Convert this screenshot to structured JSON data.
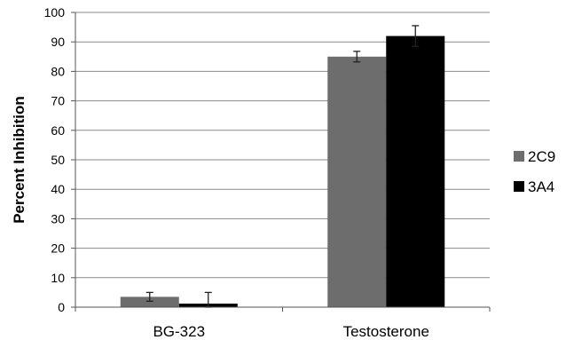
{
  "chart_data": {
    "type": "bar",
    "title": "",
    "xlabel": "",
    "ylabel": "Percent Inhibition",
    "ylim": [
      0,
      100
    ],
    "yticks": [
      0,
      10,
      20,
      30,
      40,
      50,
      60,
      70,
      80,
      90,
      100
    ],
    "grid": true,
    "legend_position": "right",
    "categories": [
      "BG-323",
      "Testosterone"
    ],
    "series": [
      {
        "name": "2C9",
        "color": "#6d6d6d",
        "values": [
          3.5,
          85
        ],
        "error": [
          1.5,
          1.8
        ]
      },
      {
        "name": "3A4",
        "color": "#000000",
        "values": [
          1.2,
          92
        ],
        "error": [
          3.8,
          3.5
        ]
      }
    ]
  }
}
